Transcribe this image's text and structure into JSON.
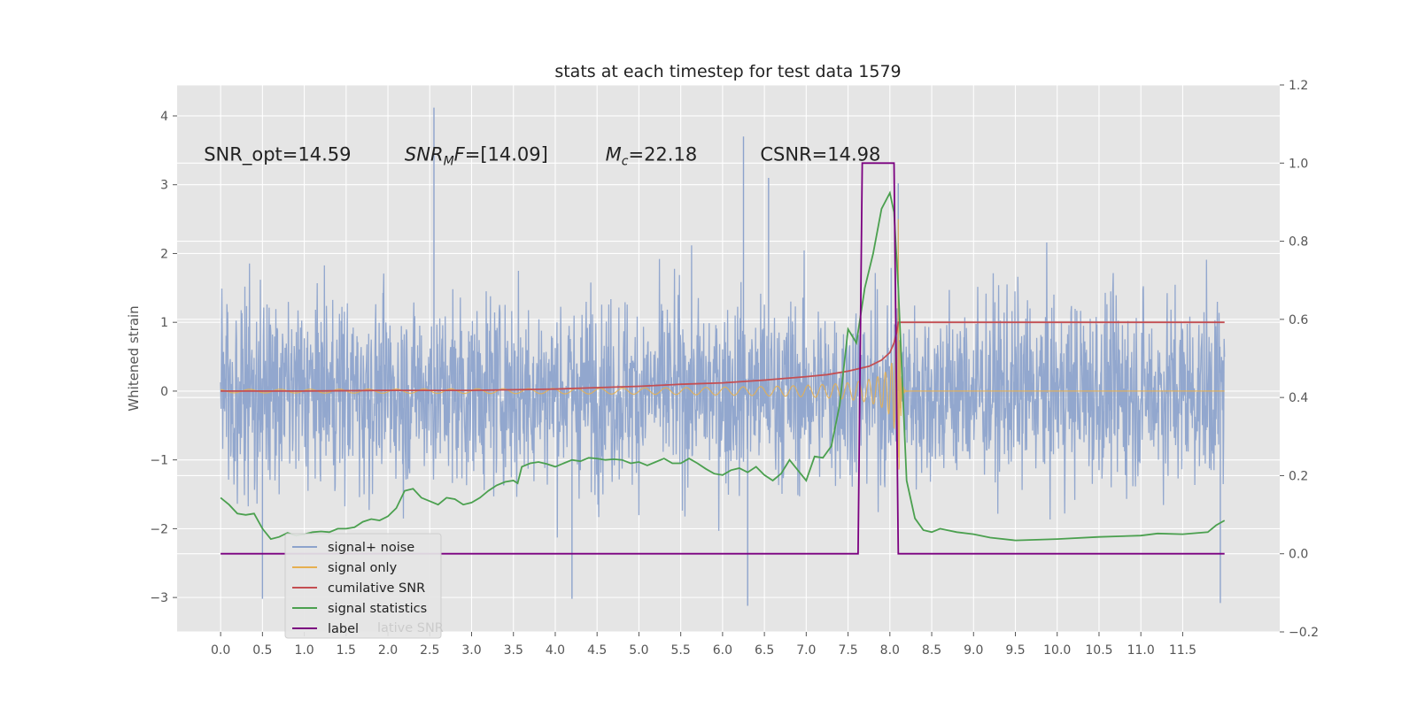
{
  "chart_data": {
    "type": "line",
    "title": "stats at each timestep for test data 1579",
    "ylabel": "Whitened strain",
    "xlim": [
      -0.52,
      12.66
    ],
    "ylim": [
      -3.5,
      4.45
    ],
    "y2lim": [
      -0.2,
      1.2
    ],
    "x_ticks": [
      0.0,
      0.5,
      1.0,
      1.5,
      2.0,
      2.5,
      3.0,
      3.5,
      4.0,
      4.5,
      5.0,
      5.5,
      6.0,
      6.5,
      7.0,
      7.5,
      8.0,
      8.5,
      9.0,
      9.5,
      10.0,
      10.5,
      11.0,
      11.5
    ],
    "x_tick_labels": [
      "0.0",
      "0.5",
      "1.0",
      "1.5",
      "2.0",
      "2.5",
      "3.0",
      "3.5",
      "4.0",
      "4.5",
      "5.0",
      "5.5",
      "6.0",
      "6.5",
      "7.0",
      "7.5",
      "8.0",
      "8.5",
      "9.0",
      "9.5",
      "10.0",
      "10.5",
      "11.0",
      "11.5"
    ],
    "y_ticks": [
      -3,
      -2,
      -1,
      0,
      1,
      2,
      3,
      4
    ],
    "y_tick_labels": [
      "−3",
      "−2",
      "−1",
      "0",
      "1",
      "2",
      "3",
      "4"
    ],
    "y2_ticks": [
      -0.2,
      0.0,
      0.2,
      0.4,
      0.6,
      0.8,
      1.0,
      1.2
    ],
    "y2_tick_labels": [
      "−0.2",
      "0.0",
      "0.2",
      "0.4",
      "0.6",
      "0.8",
      "1.0",
      "1.2"
    ],
    "grid": true,
    "legend_position": "lower-left",
    "annotations": [
      {
        "text": "SNR_opt=14.59",
        "x": -0.2,
        "y": 3.35
      },
      {
        "html": "SNR<sub>M</sub>F=[14.09]",
        "plain": "SNR_MF=[14.09]",
        "x": 2.2,
        "y": 3.35
      },
      {
        "html": "M<sub>c</sub>=22.18",
        "plain": "M_c=22.18",
        "x": 4.6,
        "y": 3.35
      },
      {
        "text": "CSNR=14.98",
        "x": 6.45,
        "y": 3.35
      }
    ],
    "series": [
      {
        "name": "signal+ noise",
        "color": "#8da3cc",
        "axis": "left",
        "kind": "noise",
        "x_range": [
          0.0,
          12.0
        ],
        "typical_amplitude": 1.0,
        "peaks": [
          [
            2.55,
            4.12
          ],
          [
            6.25,
            3.7
          ],
          [
            8.1,
            3.02
          ],
          [
            6.55,
            3.1
          ],
          [
            6.3,
            -3.12
          ],
          [
            4.2,
            -3.02
          ],
          [
            0.5,
            -3.02
          ],
          [
            11.95,
            -3.08
          ]
        ]
      },
      {
        "name": "signal only",
        "color": "#e6b050",
        "axis": "left",
        "kind": "chirp",
        "x_range": [
          0.0,
          12.0
        ],
        "merger_time": 8.1,
        "peak_amplitude": 2.5
      },
      {
        "name": "cumilative SNR",
        "color": "#c44e52",
        "axis": "left",
        "x": [
          0.0,
          1.0,
          2.0,
          3.0,
          3.5,
          4.0,
          4.5,
          5.0,
          5.5,
          6.0,
          6.5,
          7.0,
          7.25,
          7.5,
          7.75,
          7.9,
          8.0,
          8.05,
          8.08,
          8.1,
          8.5,
          9.0,
          10.0,
          11.0,
          12.0
        ],
        "y": [
          0.0,
          0.0,
          0.01,
          0.01,
          0.02,
          0.03,
          0.05,
          0.07,
          0.1,
          0.12,
          0.16,
          0.21,
          0.24,
          0.29,
          0.36,
          0.45,
          0.56,
          0.7,
          0.85,
          1.0,
          1.0,
          1.0,
          1.0,
          1.0,
          1.0
        ]
      },
      {
        "name": "signal statistics",
        "color": "#4ba04f",
        "axis": "left",
        "x": [
          0.0,
          0.1,
          0.2,
          0.3,
          0.4,
          0.5,
          0.6,
          0.7,
          0.8,
          0.9,
          1.0,
          1.1,
          1.2,
          1.3,
          1.4,
          1.5,
          1.6,
          1.7,
          1.8,
          1.9,
          2.0,
          2.1,
          2.2,
          2.3,
          2.4,
          2.5,
          2.6,
          2.7,
          2.8,
          2.9,
          3.0,
          3.1,
          3.2,
          3.3,
          3.4,
          3.5,
          3.55,
          3.6,
          3.7,
          3.8,
          3.9,
          4.0,
          4.1,
          4.2,
          4.3,
          4.4,
          4.5,
          4.6,
          4.7,
          4.8,
          4.9,
          5.0,
          5.1,
          5.2,
          5.3,
          5.4,
          5.5,
          5.6,
          5.7,
          5.8,
          5.9,
          6.0,
          6.1,
          6.2,
          6.3,
          6.4,
          6.5,
          6.6,
          6.7,
          6.8,
          6.9,
          7.0,
          7.1,
          7.2,
          7.3,
          7.4,
          7.5,
          7.6,
          7.7,
          7.8,
          7.9,
          8.0,
          8.05,
          8.1,
          8.15,
          8.2,
          8.3,
          8.4,
          8.5,
          8.6,
          8.8,
          9.0,
          9.2,
          9.5,
          10.0,
          10.5,
          11.0,
          11.2,
          11.5,
          11.8,
          11.9,
          12.0
        ],
        "y": [
          -1.55,
          -1.65,
          -1.78,
          -1.8,
          -1.78,
          -2.0,
          -2.15,
          -2.12,
          -2.06,
          -2.1,
          -2.08,
          -2.05,
          -2.04,
          -2.05,
          -2.0,
          -2.0,
          -1.98,
          -1.9,
          -1.86,
          -1.88,
          -1.82,
          -1.7,
          -1.45,
          -1.42,
          -1.55,
          -1.6,
          -1.65,
          -1.55,
          -1.57,
          -1.65,
          -1.62,
          -1.55,
          -1.45,
          -1.37,
          -1.32,
          -1.3,
          -1.34,
          -1.1,
          -1.05,
          -1.03,
          -1.06,
          -1.1,
          -1.05,
          -1.0,
          -1.02,
          -0.97,
          -0.98,
          -1.0,
          -0.99,
          -1.0,
          -1.05,
          -1.03,
          -1.08,
          -1.03,
          -0.98,
          -1.05,
          -1.05,
          -0.98,
          -1.05,
          -1.13,
          -1.2,
          -1.22,
          -1.15,
          -1.12,
          -1.18,
          -1.1,
          -1.22,
          -1.3,
          -1.2,
          -1.0,
          -1.15,
          -1.3,
          -0.95,
          -0.97,
          -0.8,
          -0.2,
          0.9,
          0.7,
          1.5,
          2.0,
          2.65,
          2.88,
          2.6,
          1.5,
          0.1,
          -1.3,
          -1.85,
          -2.02,
          -2.05,
          -2.0,
          -2.05,
          -2.08,
          -2.13,
          -2.17,
          -2.15,
          -2.12,
          -2.1,
          -2.07,
          -2.08,
          -2.05,
          -1.95,
          -1.88
        ]
      },
      {
        "name": "label",
        "color": "#7b0080",
        "axis": "right",
        "x": [
          0.0,
          7.62,
          7.67,
          8.05,
          8.1,
          12.0
        ],
        "y": [
          0.0,
          0.0,
          1.0,
          1.0,
          0.0,
          0.0
        ]
      }
    ],
    "legend": {
      "entries": [
        "signal+ noise",
        "signal only",
        "cumilative SNR",
        "signal statistics",
        "label"
      ],
      "hidden_fragment": "lative SNR"
    }
  }
}
